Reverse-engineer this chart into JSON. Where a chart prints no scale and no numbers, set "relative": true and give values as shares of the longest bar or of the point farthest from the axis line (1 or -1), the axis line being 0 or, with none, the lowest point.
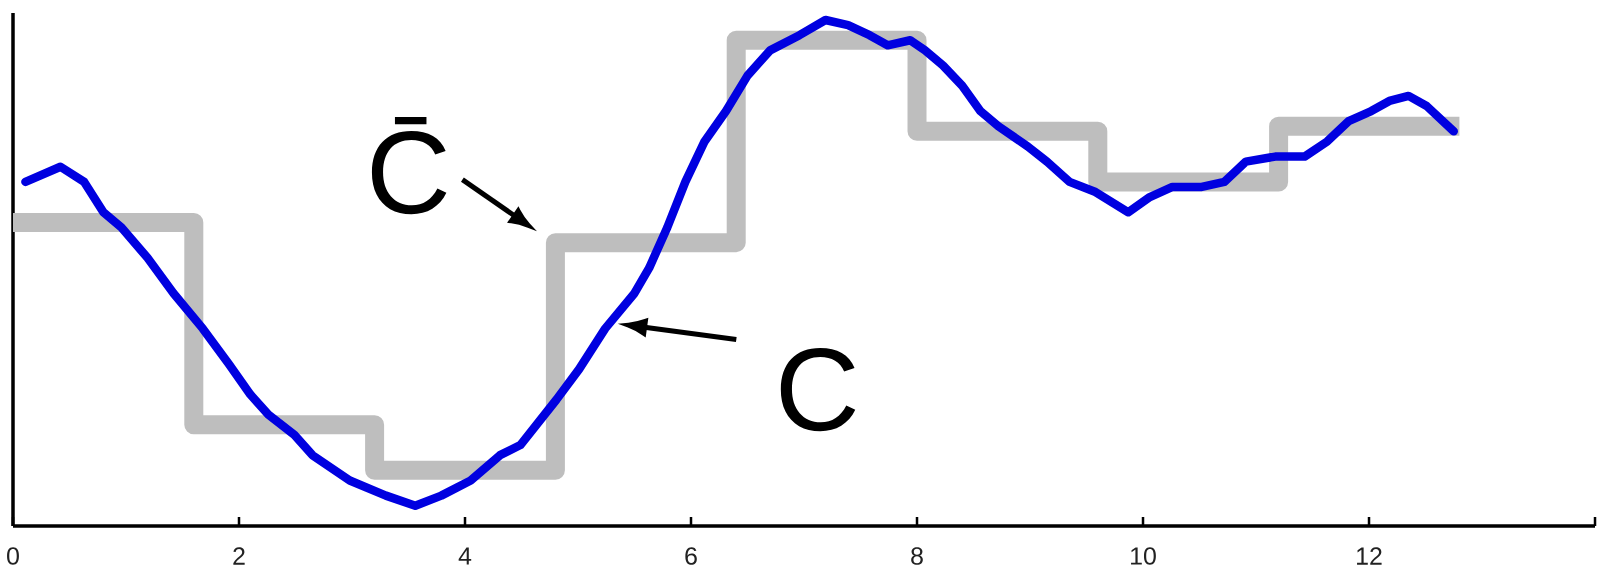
{
  "chart_data": {
    "type": "line",
    "relative": true,
    "xlim": [
      0,
      14
    ],
    "xticks": [
      0,
      2,
      4,
      6,
      8,
      10,
      12,
      {
        "value": 14,
        "label": null
      }
    ],
    "series": [
      {
        "type": "step",
        "color": "#bebebe",
        "x": [
          0,
          1.6,
          3.2,
          4.8,
          6.4,
          8.0,
          9.6,
          11.2,
          12.8
        ],
        "values": [
          0.6,
          0.2,
          0.11,
          0.56,
          0.96,
          0.78,
          0.68,
          0.79,
          0.79
        ]
      },
      {
        "color": "#0000e0",
        "x": [
          0.11,
          0.42,
          0.63,
          0.8,
          0.96,
          1.19,
          1.42,
          1.68,
          1.91,
          2.1,
          2.26,
          2.49,
          2.65,
          2.98,
          3.3,
          3.56,
          3.79,
          4.05,
          4.31,
          4.49,
          4.81,
          5.01,
          5.24,
          5.5,
          5.63,
          5.79,
          5.95,
          6.12,
          6.31,
          6.5,
          6.7,
          6.96,
          7.19,
          7.39,
          7.58,
          7.74,
          7.94,
          8.07,
          8.23,
          8.4,
          8.56,
          8.72,
          8.98,
          9.15,
          9.35,
          9.58,
          9.87,
          10.06,
          10.26,
          10.52,
          10.72,
          10.91,
          11.17,
          11.43,
          11.63,
          11.82,
          12.02,
          12.18,
          12.35,
          12.51,
          12.75
        ],
        "values": [
          0.68,
          0.71,
          0.68,
          0.62,
          0.59,
          0.53,
          0.46,
          0.39,
          0.32,
          0.26,
          0.22,
          0.18,
          0.14,
          0.09,
          0.06,
          0.04,
          0.06,
          0.09,
          0.14,
          0.16,
          0.25,
          0.31,
          0.39,
          0.46,
          0.51,
          0.59,
          0.68,
          0.76,
          0.82,
          0.89,
          0.94,
          0.97,
          1.0,
          0.99,
          0.97,
          0.95,
          0.96,
          0.94,
          0.91,
          0.87,
          0.82,
          0.79,
          0.75,
          0.72,
          0.68,
          0.66,
          0.62,
          0.65,
          0.67,
          0.67,
          0.68,
          0.72,
          0.73,
          0.73,
          0.76,
          0.8,
          0.82,
          0.84,
          0.85,
          0.83,
          0.78
        ]
      }
    ],
    "annotations": [
      {
        "text": "C̄",
        "x": 4.8,
        "y": 0.56
      },
      {
        "text": "C",
        "x": 5.33,
        "y": 0.4
      }
    ]
  }
}
